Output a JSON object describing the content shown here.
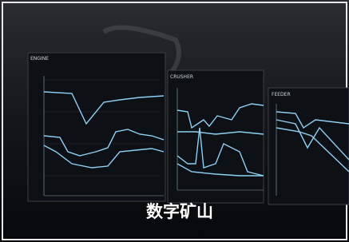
{
  "panels": [
    {
      "title": "ENGINE"
    },
    {
      "title": "CRUSHER"
    },
    {
      "title": "FEEDER"
    }
  ],
  "caption": "数字矿山"
}
